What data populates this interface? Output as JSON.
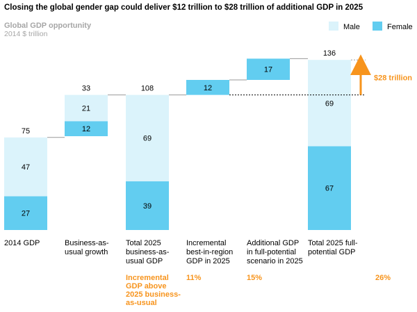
{
  "chart_data": {
    "type": "bar",
    "title": "Closing the global gender gap could deliver $12 trillion to $28 trillion of additional GDP in 2025",
    "subtitle": "Global GDP opportunity",
    "unit_label": "2014 $ trillion",
    "legend": {
      "placement": "top-right",
      "entries": [
        "Male",
        "Female"
      ]
    },
    "colors": {
      "male": "#dbf3fb",
      "female": "#62cdf0",
      "accent": "#f7941d"
    },
    "categories": [
      [
        "2014 GDP"
      ],
      [
        "Business-as-",
        "usual growth"
      ],
      [
        "Total 2025",
        "business-as-",
        "usual GDP"
      ],
      [
        "Incremental",
        "best-in-region",
        "GDP in 2025"
      ],
      [
        "Additional GDP",
        "in full-potential",
        "scenario in 2025"
      ],
      [
        "Total 2025 full-",
        "potential GDP"
      ]
    ],
    "bars": [
      {
        "kind": "total",
        "base": 0,
        "female": 27,
        "male": 47,
        "total": "75"
      },
      {
        "kind": "step",
        "base": 75,
        "female": 12,
        "male": 21,
        "total": "33"
      },
      {
        "kind": "total",
        "base": 0,
        "female": 39,
        "male": 69,
        "total": "108"
      },
      {
        "kind": "step",
        "base": 108,
        "female": 12,
        "male": null,
        "total": ""
      },
      {
        "kind": "step",
        "base": 120,
        "female": 17,
        "male": null,
        "total": ""
      },
      {
        "kind": "total",
        "base": 0,
        "female": 67,
        "male": 69,
        "total": "136"
      }
    ],
    "percentages": [
      {
        "col": 2,
        "lines": [
          "Incremental",
          "GDP above",
          "2025 business-",
          "as-usual"
        ]
      },
      {
        "col": 3,
        "lines": [
          "11%"
        ]
      },
      {
        "col": 4,
        "lines": [
          "15%"
        ]
      },
      {
        "col": 5,
        "lines": [
          "26%"
        ]
      }
    ],
    "gap_annotation": {
      "label": "$28 trillion",
      "from": 108,
      "to": 136
    }
  }
}
